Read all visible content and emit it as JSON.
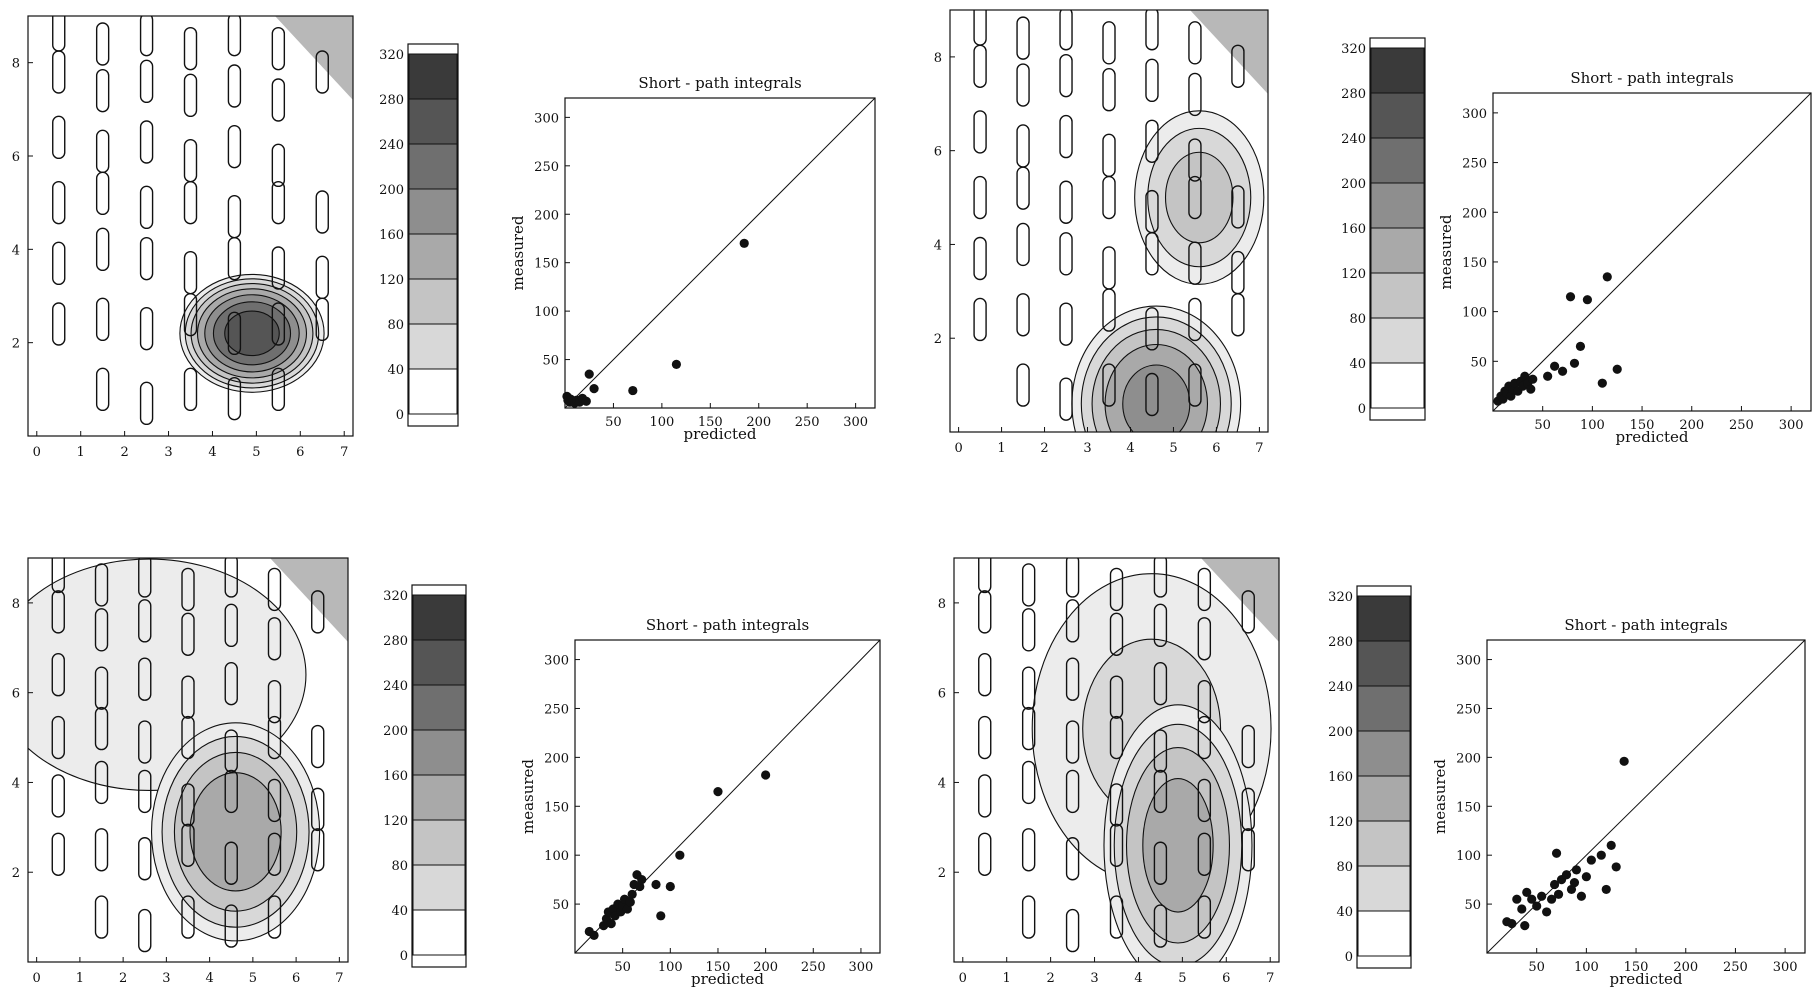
{
  "colors": {
    "ink": "#111111",
    "paper": "#ffffff",
    "contour_levels": [
      "#ffffff",
      "#ececec",
      "#d8d8d8",
      "#c4c4c4",
      "#a9a9a9",
      "#8e8e8e",
      "#6f6f6f",
      "#555555",
      "#3a3a3a"
    ]
  },
  "colorbar": {
    "ticks": [
      "0",
      "40",
      "80",
      "120",
      "160",
      "200",
      "240",
      "280",
      "320"
    ],
    "range": [
      0,
      320
    ]
  },
  "map_axes": {
    "x_ticks": [
      "0",
      "1",
      "2",
      "3",
      "4",
      "5",
      "6",
      "7"
    ],
    "y_ticks": [
      "2",
      "4",
      "6",
      "8"
    ],
    "xlim": [
      -0.2,
      7.2
    ],
    "ylim": [
      0.0,
      9.0
    ]
  },
  "sensor_sites": [
    [
      0.5,
      8.7
    ],
    [
      1.5,
      8.4
    ],
    [
      2.5,
      8.6
    ],
    [
      3.5,
      8.3
    ],
    [
      4.5,
      8.6
    ],
    [
      5.5,
      8.3
    ],
    [
      6.5,
      7.8
    ],
    [
      0.5,
      7.8
    ],
    [
      1.5,
      7.4
    ],
    [
      2.5,
      7.6
    ],
    [
      3.5,
      7.3
    ],
    [
      4.5,
      7.5
    ],
    [
      5.5,
      7.2
    ],
    [
      0.5,
      6.4
    ],
    [
      1.5,
      6.1
    ],
    [
      2.5,
      6.3
    ],
    [
      3.5,
      5.9
    ],
    [
      4.5,
      6.2
    ],
    [
      5.5,
      5.8
    ],
    [
      0.5,
      5.0
    ],
    [
      1.5,
      5.2
    ],
    [
      2.5,
      4.9
    ],
    [
      3.5,
      5.0
    ],
    [
      4.5,
      4.7
    ],
    [
      5.5,
      5.0
    ],
    [
      6.5,
      4.8
    ],
    [
      0.5,
      3.7
    ],
    [
      1.5,
      4.0
    ],
    [
      2.5,
      3.8
    ],
    [
      3.5,
      3.5
    ],
    [
      4.5,
      3.8
    ],
    [
      5.5,
      3.6
    ],
    [
      6.5,
      3.4
    ],
    [
      0.5,
      2.4
    ],
    [
      1.5,
      2.5
    ],
    [
      2.5,
      2.3
    ],
    [
      3.5,
      2.6
    ],
    [
      4.5,
      2.2
    ],
    [
      5.5,
      2.4
    ],
    [
      6.5,
      2.5
    ],
    [
      1.5,
      1.0
    ],
    [
      2.5,
      0.7
    ],
    [
      3.5,
      1.0
    ],
    [
      4.5,
      0.8
    ],
    [
      5.5,
      1.0
    ]
  ],
  "chart_data": [
    {
      "type": "scatter",
      "title": "Short - path integrals",
      "xlabel": "predicted",
      "ylabel": "measured",
      "xlim": [
        0,
        320
      ],
      "ylim": [
        0,
        320
      ],
      "x_ticks": [
        "50",
        "100",
        "150",
        "200",
        "250",
        "300"
      ],
      "y_ticks": [
        "50",
        "100",
        "150",
        "200",
        "250",
        "300"
      ],
      "diagonal": true,
      "x": [
        2,
        3,
        4,
        5,
        6,
        8,
        10,
        12,
        15,
        18,
        22,
        25,
        30,
        70,
        115,
        185
      ],
      "y": [
        12,
        8,
        10,
        6,
        9,
        7,
        5,
        8,
        6,
        10,
        7,
        35,
        20,
        18,
        45,
        170
      ],
      "contour": {
        "cx": 4.9,
        "cy": 2.2,
        "rx": 1.3,
        "ry": 1.0,
        "peak": 300,
        "blobs": []
      }
    },
    {
      "type": "scatter",
      "title": "Short - path integrals",
      "xlabel": "predicted",
      "ylabel": "measured",
      "xlim": [
        0,
        320
      ],
      "ylim": [
        0,
        320
      ],
      "x_ticks": [
        "50",
        "100",
        "150",
        "200",
        "250",
        "300"
      ],
      "y_ticks": [
        "50",
        "100",
        "150",
        "200",
        "250",
        "300"
      ],
      "diagonal": true,
      "x": [
        5,
        8,
        10,
        12,
        14,
        16,
        18,
        20,
        22,
        25,
        28,
        30,
        32,
        35,
        38,
        40,
        55,
        62,
        70,
        78,
        82,
        88,
        95,
        110,
        115,
        125
      ],
      "y": [
        10,
        15,
        12,
        20,
        18,
        25,
        15,
        22,
        28,
        20,
        30,
        25,
        35,
        28,
        22,
        32,
        35,
        45,
        40,
        115,
        48,
        65,
        112,
        28,
        135,
        42
      ],
      "contour": {
        "cx": 4.6,
        "cy": 0.6,
        "rx": 1.6,
        "ry": 1.7,
        "peak": 210,
        "blobs": [
          {
            "cx": 5.6,
            "cy": 5.0,
            "rx": 1.3,
            "ry": 1.6,
            "peak": 130
          }
        ]
      }
    },
    {
      "type": "scatter",
      "title": "Short - path integrals",
      "xlabel": "predicted",
      "ylabel": "measured",
      "xlim": [
        0,
        320
      ],
      "ylim": [
        0,
        320
      ],
      "x_ticks": [
        "50",
        "100",
        "150",
        "200",
        "250",
        "300"
      ],
      "y_ticks": [
        "50",
        "100",
        "150",
        "200",
        "250",
        "300"
      ],
      "diagonal": true,
      "x": [
        15,
        20,
        30,
        33,
        35,
        38,
        40,
        42,
        45,
        48,
        50,
        52,
        55,
        58,
        60,
        62,
        65,
        68,
        70,
        85,
        90,
        100,
        110,
        150,
        200
      ],
      "y": [
        22,
        18,
        28,
        35,
        42,
        30,
        45,
        38,
        50,
        42,
        48,
        55,
        45,
        52,
        60,
        70,
        80,
        68,
        75,
        70,
        38,
        68,
        100,
        165,
        182
      ],
      "contour": {
        "cx": 4.6,
        "cy": 2.9,
        "rx": 1.6,
        "ry": 2.0,
        "peak": 190,
        "blobs": [
          {
            "cx": 2.6,
            "cy": 6.4,
            "rx": 3.8,
            "ry": 2.7,
            "peak": 60
          }
        ]
      }
    },
    {
      "type": "scatter",
      "title": "Short - path integrals",
      "xlabel": "predicted",
      "ylabel": "measured",
      "xlim": [
        0,
        320
      ],
      "ylim": [
        0,
        320
      ],
      "x_ticks": [
        "50",
        "100",
        "150",
        "200",
        "250",
        "300"
      ],
      "y_ticks": [
        "50",
        "100",
        "150",
        "200",
        "250",
        "300"
      ],
      "diagonal": true,
      "x": [
        20,
        25,
        30,
        35,
        38,
        40,
        45,
        50,
        55,
        60,
        65,
        68,
        70,
        72,
        75,
        80,
        85,
        88,
        90,
        95,
        100,
        105,
        115,
        120,
        125,
        130,
        138
      ],
      "y": [
        32,
        30,
        55,
        45,
        28,
        62,
        55,
        48,
        58,
        42,
        55,
        70,
        102,
        60,
        75,
        80,
        65,
        72,
        85,
        58,
        78,
        95,
        100,
        65,
        110,
        88,
        196
      ],
      "contour": {
        "cx": 4.9,
        "cy": 2.6,
        "rx": 1.4,
        "ry": 2.6,
        "peak": 175,
        "blobs": [
          {
            "cx": 4.3,
            "cy": 5.2,
            "rx": 2.6,
            "ry": 3.3,
            "peak": 80
          }
        ]
      }
    }
  ]
}
